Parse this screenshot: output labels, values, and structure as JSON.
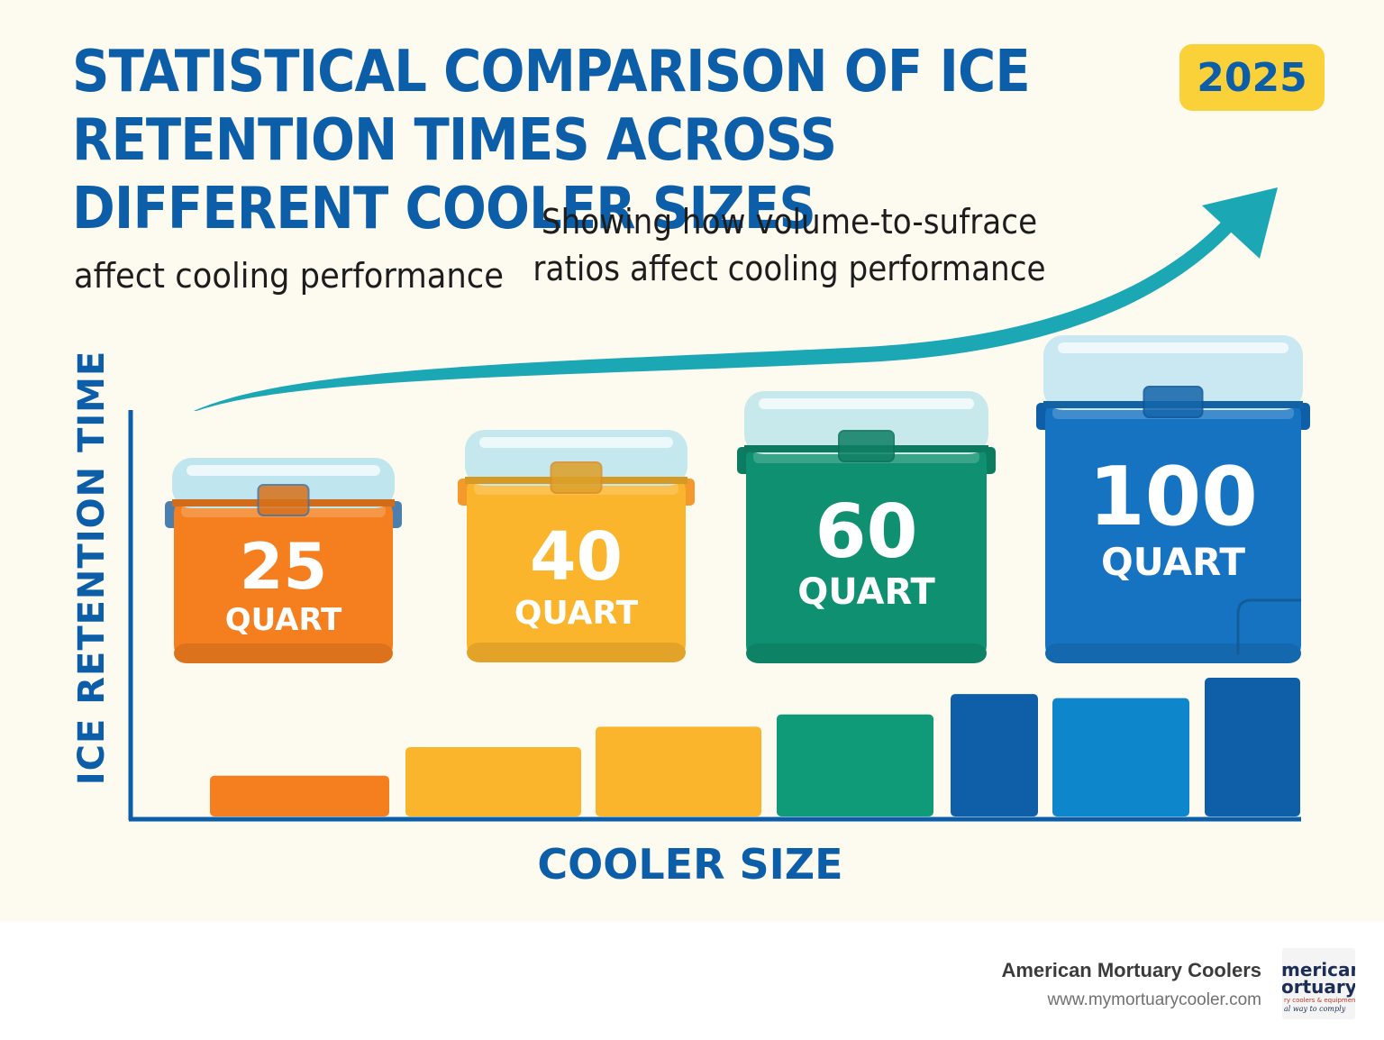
{
  "header": {
    "title": "STATISTICAL COMPARISON OF ICE RETENTION TIMES ACROSS DIFFERENT COOLER SIZES",
    "year_badge": "2025",
    "subtitle_left": "affect cooling performance",
    "subtitle_right": "Showing how volume-to-sufrace ratios affect cooling performance"
  },
  "colors": {
    "title": "#0c5ea8",
    "arrow": "#1ba7b4",
    "badge": "#fbd13a"
  },
  "coolers": [
    {
      "number": "25",
      "unit": "QUART",
      "color": "#f57f1f",
      "lid": "#bfe6ee",
      "handle": "#4d7fae"
    },
    {
      "number": "40",
      "unit": "QUART",
      "color": "#fbb52c",
      "lid": "#c4e8ee",
      "handle": "#f59a2a"
    },
    {
      "number": "60",
      "unit": "QUART",
      "color": "#0f9070",
      "lid": "#c8e9ec",
      "handle": "#0b7c5f"
    },
    {
      "number": "100",
      "unit": "QUART",
      "color": "#1673c1",
      "lid": "#c9e8f1",
      "handle": "#0e5ea8"
    }
  ],
  "chart_data": {
    "type": "bar",
    "title": "STATISTICAL COMPARISON OF ICE RETENTION TIMES ACROSS DIFFERENT COOLER SIZES",
    "xlabel": "COOLER SIZE",
    "ylabel": "ICE RETENTION TIME",
    "categories": [
      "",
      "",
      "",
      "",
      "",
      "",
      ""
    ],
    "values": [
      10,
      17,
      22,
      25,
      30,
      29,
      34
    ],
    "bar_colors": [
      "#f57f1f",
      "#fbb52c",
      "#fbb52c",
      "#0f9a78",
      "#0e5ea8",
      "#0e86cc",
      "#0e5ea8"
    ],
    "ylim": [
      0,
      34
    ],
    "grid": false,
    "legend": "none",
    "trend": "increasing"
  },
  "footer": {
    "company": "American Mortuary Coolers",
    "url": "www.mymortuarycooler.com",
    "logo_text": [
      "merican",
      "ortuary",
      "ry coolers & equipment",
      "al way to comply"
    ]
  }
}
